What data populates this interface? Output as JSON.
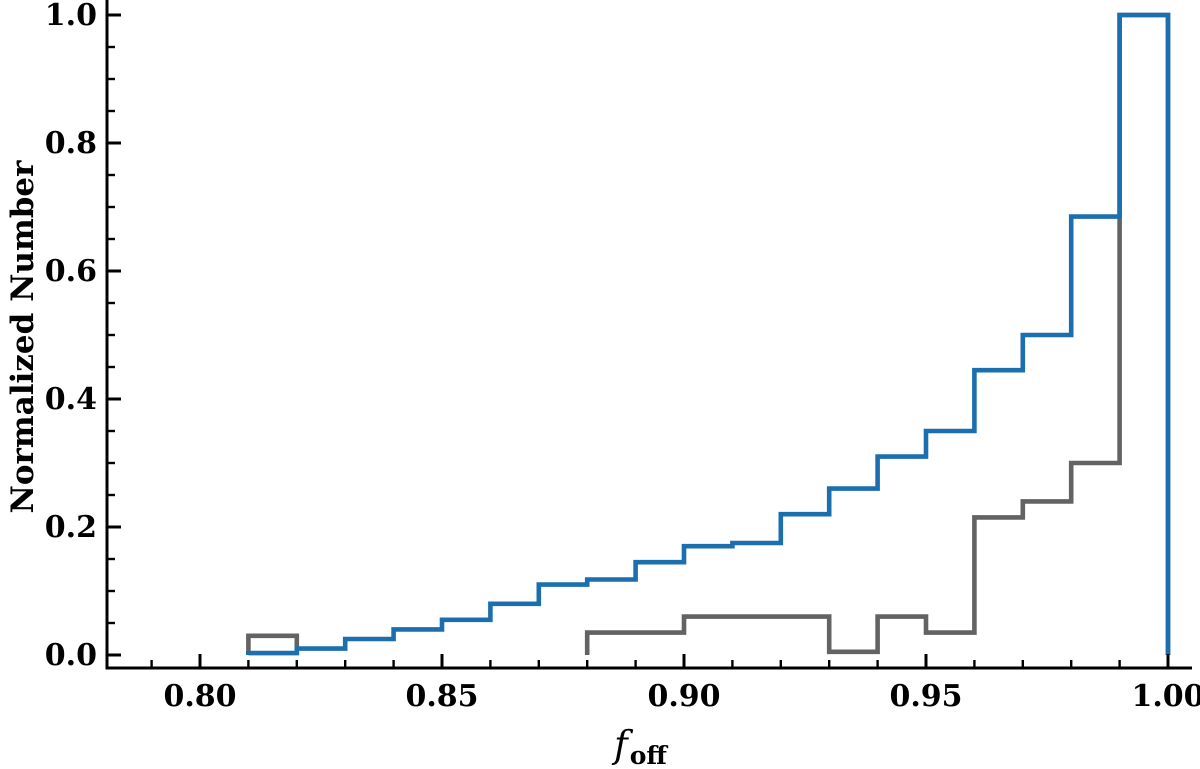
{
  "chart_data": {
    "type": "step-histogram",
    "title": "",
    "xlabel_main": "f",
    "xlabel_sub": "off",
    "ylabel": "Normalized Number",
    "background_color": "#ffffff",
    "axis_color": "#000000",
    "xlim": [
      0.7808,
      1.005
    ],
    "ylim": [
      -0.02,
      1.023
    ],
    "grid": false,
    "legend": null,
    "bin_width": 0.01,
    "x_major_ticks": [
      0.8,
      0.85,
      0.9,
      0.95,
      1.0
    ],
    "x_major_tick_labels": [
      "0.80",
      "0.85",
      "0.90",
      "0.95",
      "1.00"
    ],
    "x_minor_tick_start": 0.79,
    "x_minor_tick_end": 1.0,
    "x_minor_tick_step": 0.01,
    "y_major_ticks": [
      0.0,
      0.2,
      0.4,
      0.6,
      0.8,
      1.0
    ],
    "y_major_tick_labels": [
      "0.0",
      "0.2",
      "0.4",
      "0.6",
      "0.8",
      "1.0"
    ],
    "y_minor_tick_step": 0.05,
    "series": [
      {
        "name": "gray-histogram",
        "color": "#636363",
        "stroke_width": 4.6,
        "segments": [
          {
            "bin_start": 0.81,
            "values": [
              0.03
            ]
          },
          {
            "bin_start": 0.88,
            "values": [
              0.035,
              0.035,
              0.06,
              0.06,
              0.06,
              0.005,
              0.06,
              0.035,
              0.215,
              0.24,
              0.3,
              1.0
            ]
          }
        ]
      },
      {
        "name": "blue-histogram",
        "color": "#1C6FAE",
        "stroke_width": 4.6,
        "segments": [
          {
            "bin_start": 0.81,
            "values": [
              0.003,
              0.01,
              0.025,
              0.04,
              0.055,
              0.08,
              0.11,
              0.118,
              0.145,
              0.17,
              0.175,
              0.22,
              0.26,
              0.31,
              0.35,
              0.445,
              0.5,
              0.685,
              1.0
            ]
          }
        ]
      }
    ]
  }
}
